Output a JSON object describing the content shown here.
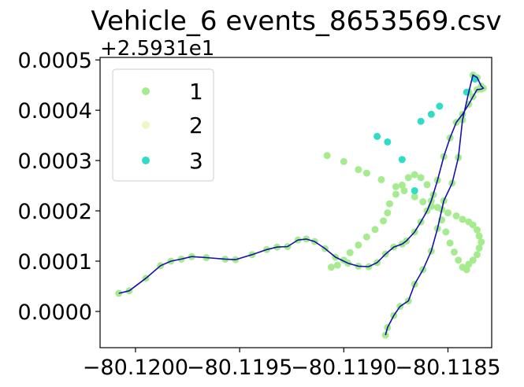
{
  "chart_data": {
    "type": "scatter",
    "title": "Vehicle_6 events_8653569.csv",
    "xlabel": "",
    "ylabel": "",
    "y_offset_label": "+2.5931e1",
    "x_tick_labels": [
      "−80.1200",
      "−80.1195",
      "−80.1190",
      "−80.1185"
    ],
    "x_ticks": [
      -80.12,
      -80.1195,
      -80.119,
      -80.1185
    ],
    "y_tick_labels": [
      "0.0000",
      "0.0001",
      "0.0002",
      "0.0003",
      "0.0004",
      "0.0005"
    ],
    "y_ticks": [
      0.0,
      0.0001,
      0.0002,
      0.0003,
      0.0004,
      0.0005
    ],
    "xlim": [
      -80.12017,
      -80.11829
    ],
    "ylim": [
      -7.2e-05,
      0.000505
    ],
    "grid": false,
    "legend_position": "upper left",
    "series": [
      {
        "name": "1",
        "color": "#a6eb8f",
        "kind": "scatter"
      },
      {
        "name": "2",
        "color": "#eef7c2",
        "kind": "scatter"
      },
      {
        "name": "3",
        "color": "#2fdcc6",
        "kind": "scatter"
      }
    ],
    "path": {
      "color": "#1414a6",
      "x": [
        -80.12008,
        -80.12003,
        -80.11995,
        -80.11988,
        -80.11983,
        -80.11978,
        -80.11973,
        -80.11966,
        -80.11957,
        -80.11952,
        -80.11944,
        -80.11937,
        -80.11932,
        -80.11927,
        -80.11922,
        -80.11918,
        -80.11914,
        -80.11909,
        -80.11904,
        -80.11898,
        -80.11893,
        -80.11888,
        -80.11884,
        -80.1188,
        -80.11876,
        -80.11872,
        -80.1187,
        -80.11866,
        -80.11863,
        -80.1186,
        -80.11858,
        -80.11855,
        -80.11852,
        -80.11849,
        -80.11846,
        -80.11843,
        -80.1184,
        -80.11838,
        -80.11836,
        -80.11834,
        -80.11833,
        -80.11834,
        -80.11836,
        -80.11838,
        -80.1184,
        -80.11843,
        -80.11845,
        -80.11848,
        -80.11852,
        -80.11855,
        -80.11858,
        -80.11862,
        -80.11866,
        -80.11869,
        -80.11873,
        -80.11876,
        -80.11879,
        -80.1188
      ],
      "y": [
        3.6e-05,
        4.1e-05,
        6.6e-05,
        9.1e-05,
        0.0001,
        0.000104,
        0.000109,
        0.000107,
        0.000104,
        0.000103,
        0.000113,
        0.000123,
        0.000128,
        0.000129,
        0.000142,
        0.000144,
        0.000139,
        0.000125,
        0.000108,
        9.6e-05,
        9e-05,
        8.9e-05,
        9.7e-05,
        0.000114,
        0.000128,
        0.000134,
        0.00014,
        0.000158,
        0.000178,
        0.0002,
        0.00022,
        0.000261,
        0.000308,
        0.000345,
        0.000376,
        0.000392,
        0.000412,
        0.000427,
        0.000441,
        0.000442,
        0.000444,
        0.000448,
        0.000465,
        0.00047,
        0.000436,
        0.000381,
        0.000306,
        0.000255,
        0.00022,
        0.000165,
        0.00012,
        8.3e-05,
        5.4e-05,
        2.1e-05,
        1e-05,
        -8e-06,
        -3.2e-05,
        -4.7e-05
      ]
    },
    "series_points": {
      "1": {
        "x": [
          -80.11908,
          -80.119,
          -80.11893,
          -80.11889,
          -80.11882,
          -80.11875,
          -80.11871,
          -80.11866,
          -80.11862,
          -80.11858,
          -80.11853,
          -80.1185,
          -80.11846,
          -80.11843,
          -80.1184,
          -80.11838,
          -80.11836,
          -80.11835,
          -80.11834,
          -80.11835,
          -80.11836,
          -80.11838,
          -80.1184,
          -80.11841,
          -80.11843,
          -80.11845,
          -80.11847,
          -80.11849,
          -80.11851,
          -80.11853,
          -80.11855,
          -80.11857,
          -80.1186,
          -80.11863,
          -80.11866,
          -80.11869,
          -80.11872,
          -80.11875,
          -80.11878,
          -80.11879,
          -80.11881,
          -80.11885,
          -80.11889,
          -80.11893,
          -80.11897,
          -80.119,
          -80.11903,
          -80.11906
        ],
        "y": [
          0.00031,
          0.000298,
          0.000282,
          0.000275,
          0.000262,
          0.000248,
          0.00024,
          0.000228,
          0.000218,
          0.000209,
          0.000203,
          0.000196,
          0.00019,
          0.000183,
          0.000178,
          0.000172,
          0.000162,
          0.00015,
          0.000138,
          0.000126,
          0.000113,
          0.000102,
          9.4e-05,
          8.3e-05,
          8.8e-05,
          0.000102,
          0.000118,
          0.000136,
          0.000158,
          0.000182,
          0.000207,
          0.000232,
          0.000252,
          0.000266,
          0.000272,
          0.000266,
          0.000251,
          0.000233,
          0.000214,
          0.000196,
          0.00018,
          0.000163,
          0.000148,
          0.000132,
          0.000117,
          0.000102,
          9.2e-05,
          8.8e-05
        ]
      },
      "2": {
        "x": [],
        "y": []
      },
      "3": {
        "x": [
          -80.11863,
          -80.11858,
          -80.11854,
          -80.11841,
          -80.11837,
          -80.11884,
          -80.11879,
          -80.11872,
          -80.11866
        ],
        "y": [
          0.000378,
          0.000392,
          0.000408,
          0.000436,
          0.000462,
          0.000348,
          0.000337,
          0.000302,
          0.00024
        ]
      }
    }
  }
}
